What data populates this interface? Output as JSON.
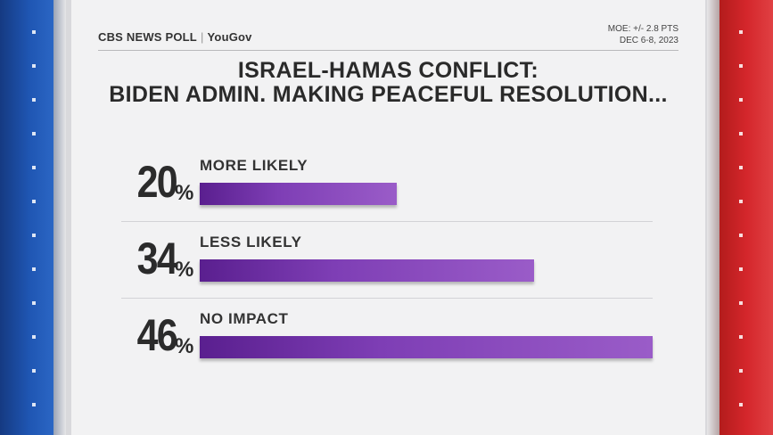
{
  "header": {
    "brand_cbs": "CBS NEWS POLL",
    "brand_sep": "|",
    "brand_partner": "YouGov",
    "moe_line1": "MOE: +/- 2.8 PTS",
    "moe_line2": "DEC 6-8, 2023"
  },
  "title_line1": "ISRAEL-HAMAS CONFLICT:",
  "title_line2": "BIDEN ADMIN. MAKING PEACEFUL RESOLUTION...",
  "colors": {
    "bar_start": "#5a1f8f",
    "bar_end": "#9a5cc8",
    "left_band": "#1f56b3",
    "right_band": "#d4262b"
  },
  "chart_data": {
    "type": "bar",
    "orientation": "horizontal",
    "categories": [
      "MORE LIKELY",
      "LESS LIKELY",
      "NO IMPACT"
    ],
    "values": [
      20,
      34,
      46
    ],
    "value_suffix": "%",
    "title": "ISRAEL-HAMAS CONFLICT: BIDEN ADMIN. MAKING PEACEFUL RESOLUTION...",
    "xlim": [
      0,
      46
    ],
    "grid": false,
    "legend": "none"
  }
}
